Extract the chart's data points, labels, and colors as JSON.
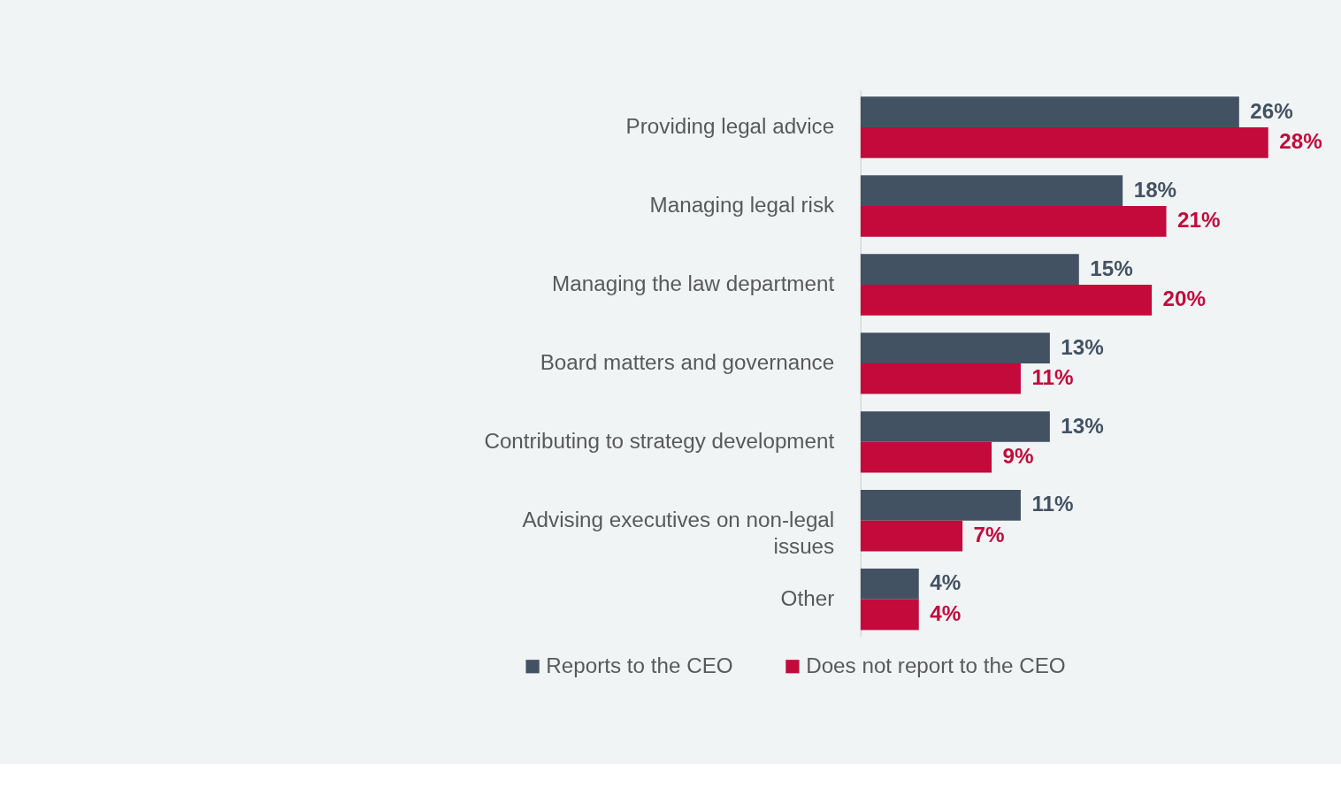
{
  "chart_data": {
    "type": "bar",
    "orientation": "horizontal",
    "legend": "bottom",
    "grid": false,
    "categories": [
      "Providing legal advice",
      "Managing legal risk",
      "Managing the law department",
      "Board matters and governance",
      "Contributing to strategy development",
      "Advising executives on non-legal issues",
      "Other"
    ],
    "series": [
      {
        "name": "Reports to the CEO",
        "color": "#435263",
        "values": [
          26,
          18,
          15,
          13,
          13,
          11,
          4
        ],
        "value_labels": [
          "26%",
          "18%",
          "15%",
          "13%",
          "13%",
          "11%",
          "4%"
        ]
      },
      {
        "name": "Does not report to the CEO",
        "color": "#c40a3a",
        "values": [
          28,
          21,
          20,
          11,
          9,
          7,
          4
        ],
        "value_labels": [
          "28%",
          "21%",
          "20%",
          "11%",
          "9%",
          "7%",
          "4%"
        ]
      }
    ]
  }
}
